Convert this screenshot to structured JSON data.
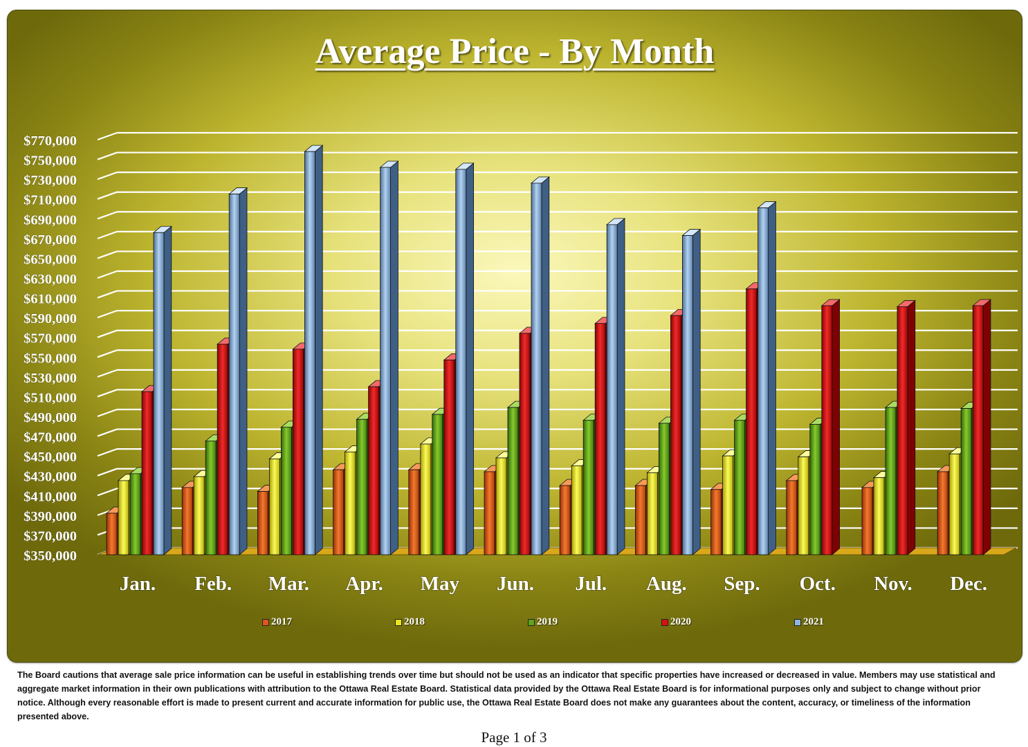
{
  "page": {
    "disclaimer": "The Board cautions that average sale price information can be useful in establishing trends over time but should not be used as an indicator that specific properties have increased or decreased in value.  Members may use statistical and aggregate market information in their own publications with attribution to the Ottawa Real Estate Board. Statistical data provided by the Ottawa Real Estate Board is for informational purposes only and subject to change without prior notice. Although every reasonable effort is made to present current and accurate information for public use, the Ottawa Real Estate Board does not make any guarantees about the content, accuracy, or timeliness of the information presented above.",
    "page_number": "Page 1 of 3"
  },
  "chart_data": {
    "type": "bar",
    "title": "Average Price - By Month",
    "xlabel": "",
    "ylabel": "",
    "ylim": [
      350000,
      770000
    ],
    "y_ticks": [
      "$350,000",
      "$370,000",
      "$390,000",
      "$410,000",
      "$430,000",
      "$450,000",
      "$470,000",
      "$490,000",
      "$510,000",
      "$530,000",
      "$550,000",
      "$570,000",
      "$590,000",
      "$610,000",
      "$630,000",
      "$650,000",
      "$670,000",
      "$690,000",
      "$710,000",
      "$730,000",
      "$750,000",
      "$770,000"
    ],
    "grid": true,
    "legend_position": "bottom",
    "categories": [
      "Jan.",
      "Feb.",
      "Mar.",
      "Apr.",
      "May",
      "Jun.",
      "Jul.",
      "Aug.",
      "Sep.",
      "Oct.",
      "Nov.",
      "Dec."
    ],
    "series": [
      {
        "name": "2017",
        "color": "#e0561c",
        "values": [
          392000,
          418000,
          414000,
          436000,
          436000,
          434000,
          420000,
          420000,
          416000,
          425000,
          418000,
          434000
        ]
      },
      {
        "name": "2018",
        "color": "#e8e81c",
        "values": [
          425000,
          429000,
          447000,
          454000,
          462000,
          448000,
          440000,
          433000,
          450000,
          449000,
          428000,
          452000
        ]
      },
      {
        "name": "2019",
        "color": "#5fa51c",
        "values": [
          432000,
          465000,
          479000,
          487000,
          492000,
          499000,
          486000,
          483000,
          486000,
          482000,
          499000,
          498000
        ]
      },
      {
        "name": "2020",
        "color": "#dd1010",
        "values": [
          515000,
          563000,
          558000,
          520000,
          547000,
          574000,
          584000,
          592000,
          619000,
          602000,
          601000,
          602000
        ]
      },
      {
        "name": "2021",
        "color": "#8fb6e0",
        "values": [
          676000,
          715000,
          758000,
          742000,
          740000,
          726000,
          684000,
          673000,
          701000,
          null,
          null,
          null
        ]
      }
    ]
  }
}
